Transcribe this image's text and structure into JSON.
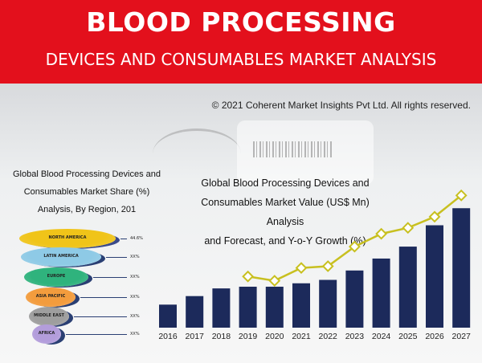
{
  "header": {
    "title": "BLOOD PROCESSING",
    "subtitle": "DEVICES AND CONSUMABLES MARKET ANALYSIS",
    "background_color": "#e3101c"
  },
  "copyright": "© 2021 Coherent Market Insights Pvt Ltd. All rights reserved.",
  "left_panel": {
    "title_lines": [
      "Global Blood Processing Devices and",
      "Consumables Market Share (%)",
      "Analysis, By Region, 201"
    ]
  },
  "right_panel": {
    "title_lines": [
      "Global Blood Processing Devices and",
      "Consumables Market Value (US$ Mn) Analysis",
      "and Forecast, and Y-o-Y Growth (%)"
    ]
  },
  "chart_data": [
    {
      "type": "funnel",
      "title": "Global Blood Processing Devices and Consumables Market Share (%) Analysis, By Region, 201",
      "categories": [
        "NORTH AMERICA",
        "LATIN AMERICA",
        "EUROPE",
        "ASIA PACIFIC",
        "MIDDLE EAST",
        "AFRICA"
      ],
      "values": [
        "44.6%",
        "XX%",
        "XX%",
        "XX%",
        "XX%",
        "XX%"
      ],
      "colors": [
        "#f0c419",
        "#8ecae6",
        "#2fb37d",
        "#f39c3d",
        "#9e9e9e",
        "#b39ddb"
      ]
    },
    {
      "type": "bar",
      "title": "Global Blood Processing Devices and Consumables Market Value (US$ Mn) Analysis and Forecast, and Y-o-Y Growth (%)",
      "categories": [
        "2016",
        "2017",
        "2018",
        "2019",
        "2020",
        "2021",
        "2022",
        "2023",
        "2024",
        "2025",
        "2026",
        "2027"
      ],
      "series": [
        {
          "type": "bar",
          "values": [
            27,
            37,
            46,
            48,
            48,
            52,
            56,
            67,
            81,
            95,
            120,
            140
          ],
          "color": "#1c2a5b"
        },
        {
          "type": "line",
          "values": [
            null,
            null,
            null,
            60,
            55,
            70,
            72,
            95,
            110,
            117,
            130,
            155
          ],
          "color": "#c8c020",
          "marker": "diamond"
        }
      ],
      "ylim": [
        0,
        160
      ],
      "grid": false
    }
  ]
}
